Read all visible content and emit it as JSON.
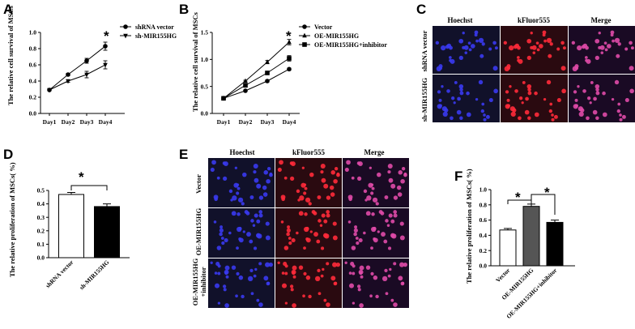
{
  "panels": {
    "A": {
      "label": "A",
      "chart_data": {
        "type": "line",
        "ylabel": "The relative cell survival of MSCs",
        "ylim": [
          0,
          1.0
        ],
        "yticks": [
          "0.0",
          "0.2",
          "0.4",
          "0.6",
          "0.8",
          "1.0"
        ],
        "categories": [
          "Day1",
          "Day2",
          "Day3",
          "Day4"
        ],
        "legend": "top-right",
        "annotation": "*",
        "series": [
          {
            "name": "shRNA vector",
            "marker": "circle",
            "values": [
              0.29,
              0.48,
              0.65,
              0.83
            ],
            "errors": [
              0.01,
              0.015,
              0.03,
              0.05
            ]
          },
          {
            "name": "sh-MIR155HG",
            "marker": "triangle-down",
            "values": [
              0.29,
              0.4,
              0.48,
              0.6
            ],
            "errors": [
              0.01,
              0.015,
              0.04,
              0.05
            ]
          }
        ]
      }
    },
    "B": {
      "label": "B",
      "chart_data": {
        "type": "line",
        "ylabel": "The relative cell survival of MSCs",
        "ylim": [
          0,
          1.5
        ],
        "yticks": [
          "0.0",
          "0.5",
          "1.0",
          "1.5"
        ],
        "categories": [
          "Day1",
          "Day2",
          "Day3",
          "Day4"
        ],
        "legend": "top-right",
        "annotation": "*",
        "series": [
          {
            "name": "Vector",
            "marker": "circle",
            "values": [
              0.28,
              0.42,
              0.6,
              0.82
            ],
            "errors": [
              0.01,
              0.015,
              0.02,
              0.02
            ]
          },
          {
            "name": "OE-MIR155HG",
            "marker": "triangle-up",
            "values": [
              0.28,
              0.6,
              0.95,
              1.32
            ],
            "errors": [
              0.01,
              0.015,
              0.03,
              0.05
            ]
          },
          {
            "name": "OE-MIR155HG+inhibitor",
            "marker": "square",
            "values": [
              0.28,
              0.52,
              0.75,
              1.02
            ],
            "errors": [
              0.01,
              0.02,
              0.03,
              0.05
            ]
          }
        ]
      }
    },
    "C": {
      "label": "C",
      "columns": [
        "Hoechst",
        "kFluor555",
        "Merge"
      ],
      "rows": [
        "shRNA vector",
        "sh-MIR155HG"
      ]
    },
    "D": {
      "label": "D",
      "chart_data": {
        "type": "bar",
        "ylabel": "The relative proliferation of MSCs( %)",
        "ylim": [
          0,
          0.5
        ],
        "yticks": [
          "0.0",
          "0.1",
          "0.2",
          "0.3",
          "0.4",
          "0.5"
        ],
        "categories": [
          "shRNA vector",
          "sh-MIR155HG"
        ],
        "values": [
          0.47,
          0.38
        ],
        "errors": [
          0.015,
          0.02
        ],
        "bar_colors": [
          "#ffffff",
          "#000000"
        ],
        "annotation": "*"
      }
    },
    "E": {
      "label": "E",
      "columns": [
        "Hoechst",
        "kFluor555",
        "Merge"
      ],
      "rows": [
        "Vector",
        "OE-MIR155HG",
        "OE-MIR155HG",
        "+inhibitor"
      ]
    },
    "F": {
      "label": "F",
      "chart_data": {
        "type": "bar",
        "ylabel": "The relative proliferation of MSCs( %)",
        "ylim": [
          0,
          1.0
        ],
        "yticks": [
          "0.0",
          "0.2",
          "0.4",
          "0.6",
          "0.8",
          "1.0"
        ],
        "categories": [
          "Vector",
          "OE-MIR155HG",
          "OE-MIR155HG+inhibitor"
        ],
        "values": [
          0.47,
          0.78,
          0.57
        ],
        "errors": [
          0.02,
          0.03,
          0.03
        ],
        "bar_colors": [
          "#ffffff",
          "#555555",
          "#000000"
        ],
        "annotation": "*"
      }
    }
  },
  "colors": {
    "hoechst_bg": "#11112a",
    "hoechst_cell": "#3a3af0",
    "kfluor_bg": "#2a0a10",
    "kfluor_cell": "#ff2a3a",
    "merge_cell": "#e04aa8"
  }
}
